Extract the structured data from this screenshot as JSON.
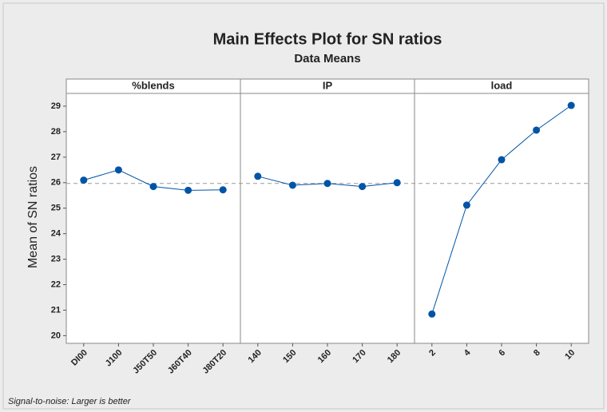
{
  "chart_data": {
    "type": "line",
    "title": "Main Effects Plot for SN ratios",
    "subtitle": "Data Means",
    "ylabel": "Mean of SN ratios",
    "footnote": "Signal-to-noise: Larger is better",
    "color": "#0054a6",
    "mean": 25.97,
    "ylim": [
      19.7,
      29.5
    ],
    "yticks": [
      20,
      21,
      22,
      23,
      24,
      25,
      26,
      27,
      28,
      29
    ],
    "panels": [
      {
        "name": "%blends",
        "categories": [
          "DI00",
          "J100",
          "J50T50",
          "J60T40",
          "J80T20"
        ],
        "values": [
          26.1,
          26.5,
          25.85,
          25.7,
          25.72
        ]
      },
      {
        "name": "IP",
        "categories": [
          "140",
          "150",
          "160",
          "170",
          "180"
        ],
        "values": [
          26.25,
          25.9,
          25.97,
          25.85,
          26.0
        ]
      },
      {
        "name": "load",
        "categories": [
          "2",
          "4",
          "6",
          "8",
          "10"
        ],
        "values": [
          20.85,
          25.12,
          26.9,
          28.06,
          29.03
        ]
      }
    ]
  }
}
